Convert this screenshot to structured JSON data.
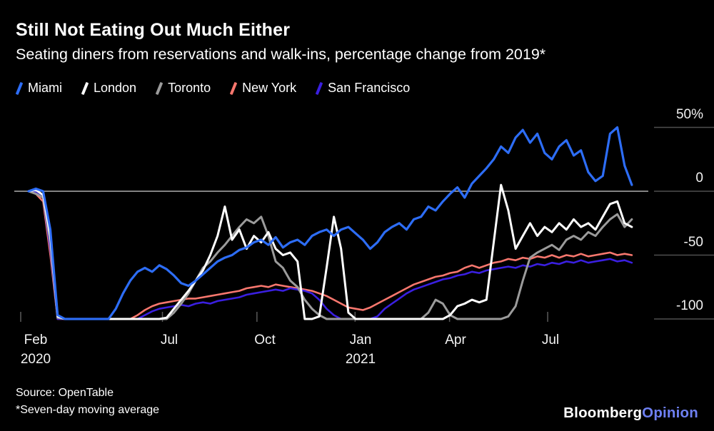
{
  "header": {
    "title": "Still Not Eating Out Much Either",
    "subtitle": "Seating diners from reservations and walk-ins, percentage change from 2019*"
  },
  "footer": {
    "source": "Source: OpenTable",
    "note": "*Seven-day moving average",
    "brand": {
      "name": "Bloomberg",
      "suffix": "Opinion",
      "suffix_color": "#6e80f2"
    }
  },
  "chart_data": {
    "type": "line",
    "title": "Still Not Eating Out Much Either",
    "x_unit": "weeks since mid-February 2020",
    "ylabel": "percentage change from 2019",
    "ylim": [
      -110,
      60
    ],
    "zero_line": true,
    "legend_position": "top",
    "x_ticks": [
      {
        "label": "Feb",
        "sublabel": "2020",
        "week": 0
      },
      {
        "label": "Jul",
        "week": 19.5
      },
      {
        "label": "Oct",
        "week": 32.5
      },
      {
        "label": "Jan",
        "sublabel": "2021",
        "week": 46
      },
      {
        "label": "Apr",
        "week": 59
      },
      {
        "label": "Jul",
        "week": 72.5
      }
    ],
    "y_ticks": [
      {
        "label": "50%",
        "value": 50
      },
      {
        "label": "0",
        "value": 0
      },
      {
        "label": "-50",
        "value": -50
      },
      {
        "label": "-100",
        "value": -100
      }
    ],
    "series": [
      {
        "name": "Miami",
        "color": "#2d6df6",
        "values": [
          0,
          2,
          0,
          -30,
          -97,
          -100,
          -100,
          -100,
          -100,
          -100,
          -100,
          -100,
          -92,
          -80,
          -70,
          -63,
          -60,
          -63,
          -58,
          -61,
          -66,
          -72,
          -74,
          -70,
          -65,
          -60,
          -55,
          -52,
          -50,
          -46,
          -44,
          -40,
          -38,
          -42,
          -36,
          -44,
          -40,
          -38,
          -42,
          -35,
          -32,
          -30,
          -35,
          -30,
          -28,
          -33,
          -38,
          -45,
          -40,
          -32,
          -28,
          -25,
          -30,
          -22,
          -20,
          -12,
          -15,
          -8,
          -2,
          3,
          -5,
          6,
          12,
          18,
          25,
          35,
          30,
          42,
          48,
          38,
          45,
          30,
          25,
          35,
          40,
          28,
          32,
          15,
          8,
          12,
          45,
          50,
          20,
          5
        ]
      },
      {
        "name": "London",
        "color": "#ffffff",
        "values": [
          0,
          1,
          -3,
          -35,
          -98,
          -100,
          -100,
          -100,
          -100,
          -100,
          -100,
          -100,
          -100,
          -100,
          -100,
          -100,
          -100,
          -100,
          -100,
          -99,
          -92,
          -85,
          -78,
          -70,
          -62,
          -50,
          -35,
          -12,
          -38,
          -30,
          -45,
          -35,
          -40,
          -32,
          -45,
          -50,
          -48,
          -55,
          -100,
          -100,
          -98,
          -60,
          -20,
          -45,
          -95,
          -100,
          -100,
          -100,
          -100,
          -100,
          -100,
          -100,
          -100,
          -100,
          -100,
          -100,
          -100,
          -100,
          -97,
          -90,
          -88,
          -85,
          -87,
          -85,
          -40,
          5,
          -15,
          -45,
          -35,
          -25,
          -35,
          -28,
          -32,
          -25,
          -30,
          -22,
          -28,
          -25,
          -30,
          -20,
          -10,
          -8,
          -25,
          -28
        ]
      },
      {
        "name": "Toronto",
        "color": "#9b9b9b",
        "values": [
          0,
          -2,
          -5,
          -40,
          -99,
          -100,
          -100,
          -100,
          -100,
          -100,
          -100,
          -100,
          -100,
          -100,
          -100,
          -100,
          -100,
          -100,
          -100,
          -100,
          -95,
          -88,
          -80,
          -70,
          -60,
          -55,
          -48,
          -42,
          -35,
          -28,
          -22,
          -25,
          -20,
          -35,
          -55,
          -60,
          -70,
          -75,
          -85,
          -92,
          -97,
          -100,
          -100,
          -100,
          -100,
          -100,
          -100,
          -100,
          -100,
          -100,
          -100,
          -100,
          -100,
          -100,
          -100,
          -95,
          -85,
          -88,
          -97,
          -100,
          -100,
          -100,
          -100,
          -100,
          -100,
          -100,
          -98,
          -90,
          -70,
          -52,
          -48,
          -45,
          -42,
          -46,
          -38,
          -35,
          -38,
          -32,
          -35,
          -28,
          -22,
          -18,
          -28,
          -22
        ]
      },
      {
        "name": "New York",
        "color": "#f8776e",
        "values": [
          0,
          -2,
          -8,
          -50,
          -100,
          -100,
          -100,
          -100,
          -100,
          -100,
          -100,
          -100,
          -100,
          -100,
          -100,
          -97,
          -93,
          -90,
          -88,
          -87,
          -86,
          -85,
          -84,
          -84,
          -83,
          -82,
          -81,
          -80,
          -79,
          -78,
          -76,
          -75,
          -74,
          -75,
          -73,
          -74,
          -75,
          -76,
          -77,
          -78,
          -80,
          -82,
          -85,
          -88,
          -91,
          -92,
          -93,
          -91,
          -88,
          -85,
          -82,
          -79,
          -76,
          -73,
          -71,
          -69,
          -67,
          -66,
          -64,
          -63,
          -60,
          -58,
          -60,
          -58,
          -56,
          -55,
          -53,
          -54,
          -52,
          -53,
          -51,
          -52,
          -50,
          -52,
          -50,
          -51,
          -49,
          -51,
          -50,
          -49,
          -48,
          -50,
          -49,
          -50
        ]
      },
      {
        "name": "San Francisco",
        "color": "#3a1fe0",
        "values": [
          0,
          -1,
          -5,
          -45,
          -100,
          -100,
          -100,
          -100,
          -100,
          -100,
          -100,
          -100,
          -100,
          -100,
          -100,
          -100,
          -97,
          -94,
          -92,
          -91,
          -90,
          -89,
          -90,
          -88,
          -87,
          -88,
          -86,
          -85,
          -84,
          -83,
          -81,
          -80,
          -79,
          -78,
          -77,
          -78,
          -76,
          -77,
          -78,
          -80,
          -85,
          -92,
          -97,
          -100,
          -100,
          -100,
          -100,
          -100,
          -98,
          -92,
          -88,
          -84,
          -80,
          -77,
          -75,
          -73,
          -71,
          -69,
          -68,
          -66,
          -65,
          -63,
          -64,
          -62,
          -61,
          -60,
          -59,
          -60,
          -58,
          -59,
          -57,
          -58,
          -56,
          -57,
          -55,
          -56,
          -54,
          -56,
          -55,
          -54,
          -53,
          -55,
          -54,
          -56
        ]
      }
    ]
  }
}
